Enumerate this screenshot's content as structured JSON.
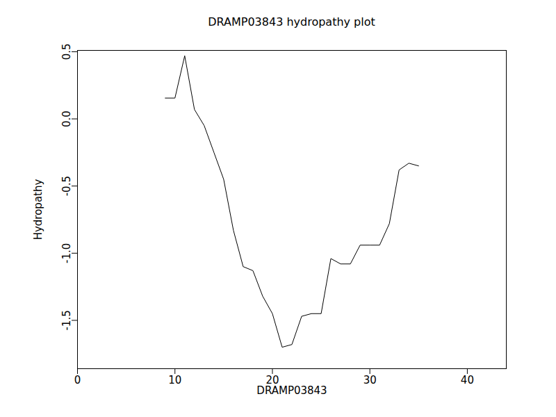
{
  "chart_data": {
    "type": "line",
    "title": "DRAMP03843 hydropathy plot",
    "x_label": "DRAMP03843",
    "y_label": "Hydropathy",
    "x": [
      9,
      10,
      11,
      12,
      13,
      14,
      15,
      16,
      17,
      18,
      19,
      20,
      21,
      22,
      23,
      24,
      25,
      26,
      27,
      28,
      29,
      30,
      31,
      32,
      33,
      34,
      35
    ],
    "values": [
      0.155,
      0.155,
      0.47,
      0.07,
      -0.05,
      -0.25,
      -0.45,
      -0.83,
      -1.1,
      -1.13,
      -1.32,
      -1.45,
      -1.7,
      -1.68,
      -1.47,
      -1.45,
      -1.45,
      -1.04,
      -1.08,
      -1.08,
      -0.94,
      -0.94,
      -0.94,
      -0.78,
      -0.38,
      -0.33,
      -0.35
    ],
    "color": "#000000",
    "xlim": [
      0,
      44
    ],
    "ylim": [
      -1.86,
      0.51
    ],
    "xticks": [
      0,
      10,
      20,
      30,
      40
    ],
    "yticks": [
      {
        "value": 0.5,
        "label": "0.5"
      },
      {
        "value": 0,
        "label": "0.0"
      },
      {
        "value": -0.5,
        "label": "-0.5"
      },
      {
        "value": -1,
        "label": "-1.0"
      },
      {
        "value": -1.5,
        "label": "-1.5"
      }
    ],
    "grid": false
  }
}
